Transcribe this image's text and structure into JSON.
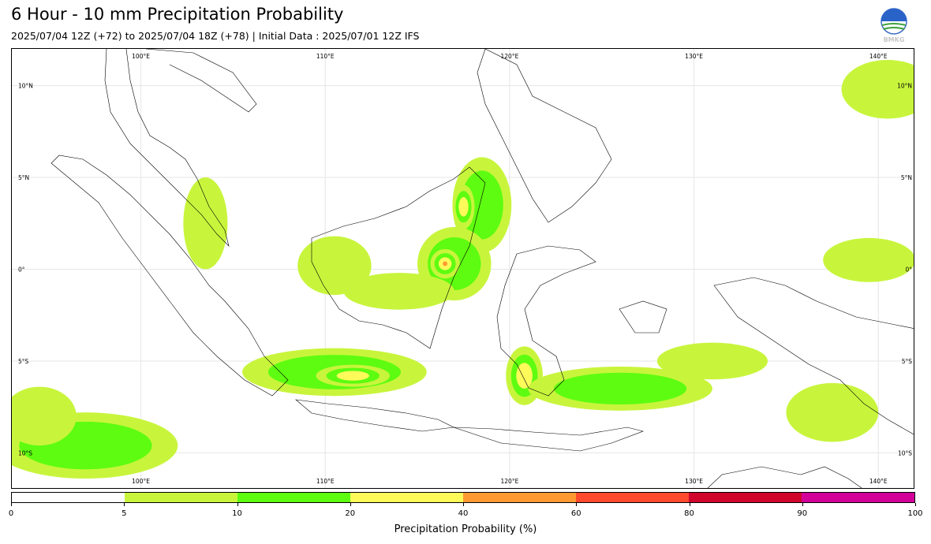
{
  "header": {
    "title": "6 Hour - 10 mm Precipitation Probability",
    "subtitle": "2025/07/04 12Z (+72) to 2025/07/04 18Z (+78) | Initial Data : 2025/07/01 12Z IFS",
    "logo_text": "BMKG"
  },
  "map": {
    "lon_labels": [
      "100°E",
      "110°E",
      "120°E",
      "130°E",
      "140°E"
    ],
    "lat_labels": [
      "10°N",
      "5°N",
      "0°",
      "5°S",
      "10°S"
    ],
    "lon_range": [
      93,
      142
    ],
    "lat_range": [
      -12,
      12
    ],
    "land_color": "#ffffff",
    "coast_color": "#000000",
    "precip_areas": [
      {
        "name": "south-of-java-ocean",
        "center": [
          97,
          -9.6
        ],
        "size": [
          5,
          1.8
        ],
        "level": 2
      },
      {
        "name": "indian-ocean-west",
        "center": [
          94.5,
          -8
        ],
        "size": [
          2,
          1.6
        ],
        "level": 1
      },
      {
        "name": "java-sea",
        "center": [
          110.5,
          -5.6
        ],
        "size": [
          5,
          1.3
        ],
        "level": 2
      },
      {
        "name": "java-sea-core",
        "center": [
          111.5,
          -5.8
        ],
        "size": [
          2,
          0.6
        ],
        "level": 3
      },
      {
        "name": "borneo-north",
        "center": [
          118.5,
          3.5
        ],
        "size": [
          1.6,
          2.6
        ],
        "level": 2
      },
      {
        "name": "borneo-north-core",
        "center": [
          117.5,
          3.4
        ],
        "size": [
          0.6,
          1.2
        ],
        "level": 3
      },
      {
        "name": "borneo-east",
        "center": [
          117,
          0.3
        ],
        "size": [
          2,
          2
        ],
        "level": 2
      },
      {
        "name": "borneo-east-core",
        "center": [
          116.5,
          0.3
        ],
        "size": [
          0.8,
          0.8
        ],
        "level": 4
      },
      {
        "name": "borneo-west",
        "center": [
          110.5,
          0.2
        ],
        "size": [
          2,
          1.6
        ],
        "level": 1
      },
      {
        "name": "borneo-central",
        "center": [
          114,
          -1.2
        ],
        "size": [
          3,
          1
        ],
        "level": 1
      },
      {
        "name": "sulawesi-south",
        "center": [
          120.8,
          -5.8
        ],
        "size": [
          1,
          1.6
        ],
        "level": 3
      },
      {
        "name": "flores-sea",
        "center": [
          126,
          -6.5
        ],
        "size": [
          5,
          1.2
        ],
        "level": 2
      },
      {
        "name": "banda-sea",
        "center": [
          131,
          -5
        ],
        "size": [
          3,
          1
        ],
        "level": 1
      },
      {
        "name": "arafura-sea",
        "center": [
          137.5,
          -7.8
        ],
        "size": [
          2.5,
          1.6
        ],
        "level": 1
      },
      {
        "name": "philippine-east",
        "center": [
          140.5,
          9.8
        ],
        "size": [
          2.5,
          1.6
        ],
        "level": 1
      },
      {
        "name": "malaysia-east-coast",
        "center": [
          103.5,
          2.5
        ],
        "size": [
          1.2,
          2.5
        ],
        "level": 1
      },
      {
        "name": "pacific-north-guinea",
        "center": [
          139.5,
          0.5
        ],
        "size": [
          2.5,
          1.2
        ],
        "level": 1
      }
    ]
  },
  "colorbar": {
    "colors": [
      "#ffffff",
      "#c8f53c",
      "#5efc10",
      "#fdfa5a",
      "#ff9a32",
      "#ff4a2e",
      "#d0062c",
      "#d20099"
    ],
    "ticks": [
      "0",
      "5",
      "10",
      "20",
      "40",
      "60",
      "80",
      "90",
      "100"
    ],
    "label": "Precipitation Probability (%)"
  }
}
